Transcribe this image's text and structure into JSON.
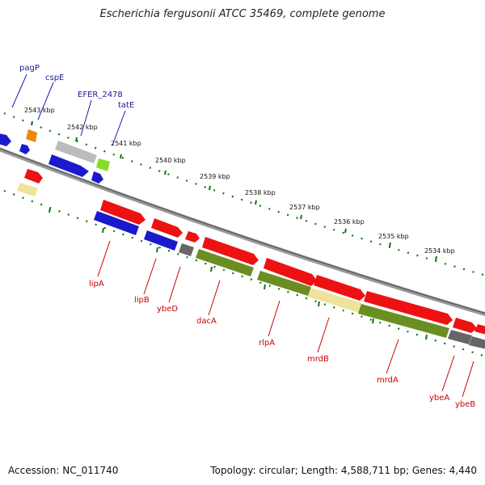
{
  "title": "Escherichia fergusonii ATCC 35469, complete genome",
  "footer": {
    "accession": "Accession: NC_011740",
    "summary": "Topology: circular; Length: 4,588,711 bp; Genes: 4,440"
  },
  "colors": {
    "red": "#ee1111",
    "blue": "#1a1acc",
    "olive": "#6b8e23",
    "grey": "#666666",
    "light_grey": "#bbbbbb",
    "yellow": "#eee39a",
    "orange": "#ee8800",
    "lime": "#88dd22",
    "tick_green": "#117711",
    "backbone": "#888888"
  },
  "ticks": [
    "2543 kbp",
    "2542 kbp",
    "2541 kbp",
    "2540 kbp",
    "2539 kbp",
    "2538 kbp",
    "2537 kbp",
    "2536 kbp",
    "2535 kbp",
    "2534 kbp"
  ],
  "genes_top": [
    "pagP",
    "cspE",
    "EFER_2478",
    "tatE"
  ],
  "genes_bottom": [
    "lipA",
    "lipB",
    "ybeD",
    "dacA",
    "rlpA",
    "mrdB",
    "mrdA",
    "ybeA",
    "ybeB"
  ]
}
